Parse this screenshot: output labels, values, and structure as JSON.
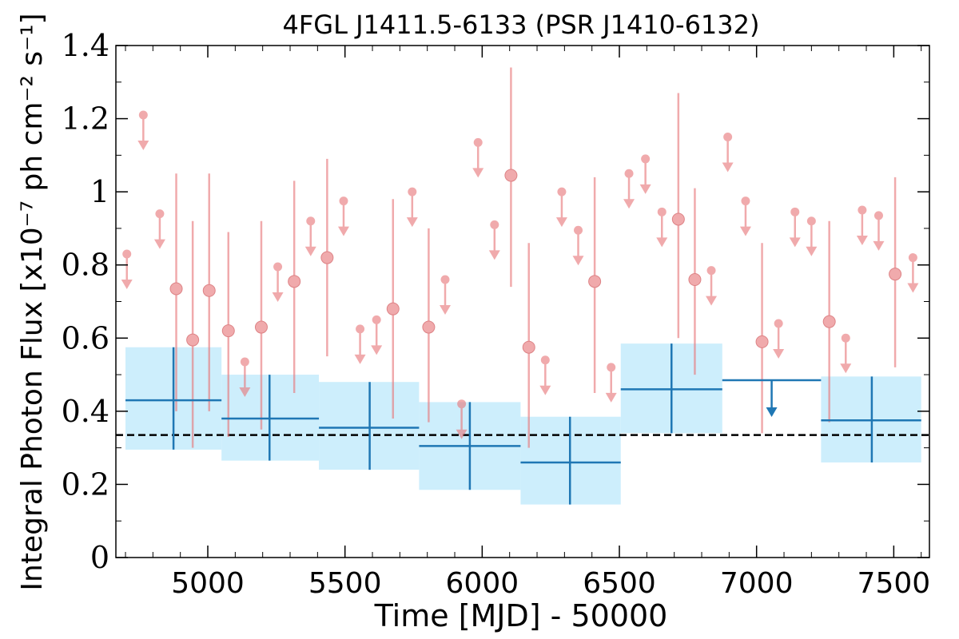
{
  "chart_data": {
    "type": "scatter",
    "title": "4FGL J1411.5-6133 (PSR J1410-6132)",
    "xlabel": "Time [MJD] - 50000",
    "ylabel": "Integral Photon Flux [x10⁻⁷ ph cm⁻² s⁻¹]",
    "xlim": [
      4665,
      7630
    ],
    "ylim": [
      0,
      1.4
    ],
    "xticks": [
      5000,
      5500,
      6000,
      6500,
      7000,
      7500
    ],
    "xtick_labels": [
      "5000",
      "5500",
      "6000",
      "6500",
      "7000",
      "7500"
    ],
    "yticks": [
      0,
      0.2,
      0.4,
      0.6,
      0.8,
      1,
      1.2,
      1.4
    ],
    "ytick_labels": [
      "0",
      "0.2",
      "0.4",
      "0.6",
      "0.8",
      "1",
      "1.2",
      "1.4"
    ],
    "grid": false,
    "reference_line": {
      "y": 0.335,
      "style": "dashed",
      "color": "#000000"
    },
    "colors": {
      "short_bins": "#e8777a",
      "long_bins_line": "#1f77b4",
      "long_bins_band": "#cdeefc"
    },
    "series": [
      {
        "bin": "short",
        "points": [
          {
            "x": 4705,
            "y": 0.83,
            "ul": true
          },
          {
            "x": 4765,
            "y": 1.21,
            "ul": true
          },
          {
            "x": 4825,
            "y": 0.94,
            "ul": true
          },
          {
            "x": 4885,
            "y": 0.735,
            "lo": 0.4,
            "hi": 1.05
          },
          {
            "x": 4945,
            "y": 0.595,
            "lo": 0.3,
            "hi": 0.92
          },
          {
            "x": 5005,
            "y": 0.73,
            "lo": 0.4,
            "hi": 1.05
          },
          {
            "x": 5075,
            "y": 0.62,
            "lo": 0.33,
            "hi": 0.89
          },
          {
            "x": 5135,
            "y": 0.535,
            "ul": true
          },
          {
            "x": 5195,
            "y": 0.63,
            "lo": 0.35,
            "hi": 0.92
          },
          {
            "x": 5255,
            "y": 0.795,
            "ul": true
          },
          {
            "x": 5315,
            "y": 0.755,
            "lo": 0.45,
            "hi": 1.03
          },
          {
            "x": 5375,
            "y": 0.92,
            "ul": true
          },
          {
            "x": 5435,
            "y": 0.82,
            "lo": 0.55,
            "hi": 1.09
          },
          {
            "x": 5495,
            "y": 0.975,
            "ul": true
          },
          {
            "x": 5555,
            "y": 0.625,
            "ul": true
          },
          {
            "x": 5615,
            "y": 0.65,
            "ul": true
          },
          {
            "x": 5675,
            "y": 0.68,
            "lo": 0.38,
            "hi": 0.98
          },
          {
            "x": 5745,
            "y": 1.0,
            "ul": true
          },
          {
            "x": 5805,
            "y": 0.63,
            "lo": 0.37,
            "hi": 0.9
          },
          {
            "x": 5865,
            "y": 0.76,
            "ul": true
          },
          {
            "x": 5925,
            "y": 0.42,
            "ul": true
          },
          {
            "x": 5985,
            "y": 1.135,
            "ul": true
          },
          {
            "x": 6045,
            "y": 0.91,
            "ul": true
          },
          {
            "x": 6105,
            "y": 1.045,
            "lo": 0.74,
            "hi": 1.34
          },
          {
            "x": 6170,
            "y": 0.575,
            "lo": 0.3,
            "hi": 0.86
          },
          {
            "x": 6230,
            "y": 0.54,
            "ul": true
          },
          {
            "x": 6290,
            "y": 1.0,
            "ul": true
          },
          {
            "x": 6350,
            "y": 0.895,
            "ul": true
          },
          {
            "x": 6410,
            "y": 0.755,
            "lo": 0.45,
            "hi": 1.04
          },
          {
            "x": 6470,
            "y": 0.52,
            "ul": true
          },
          {
            "x": 6535,
            "y": 1.05,
            "ul": true
          },
          {
            "x": 6595,
            "y": 1.09,
            "ul": true
          },
          {
            "x": 6655,
            "y": 0.945,
            "ul": true
          },
          {
            "x": 6715,
            "y": 0.925,
            "lo": 0.6,
            "hi": 1.27
          },
          {
            "x": 6775,
            "y": 0.76,
            "lo": 0.5,
            "hi": 1.01
          },
          {
            "x": 6835,
            "y": 0.785,
            "ul": true
          },
          {
            "x": 6895,
            "y": 1.15,
            "ul": true
          },
          {
            "x": 6960,
            "y": 0.975,
            "ul": true
          },
          {
            "x": 7020,
            "y": 0.59,
            "lo": 0.34,
            "hi": 0.86
          },
          {
            "x": 7080,
            "y": 0.64,
            "ul": true
          },
          {
            "x": 7140,
            "y": 0.945,
            "ul": true
          },
          {
            "x": 7200,
            "y": 0.92,
            "ul": true
          },
          {
            "x": 7265,
            "y": 0.645,
            "lo": 0.37,
            "hi": 0.92
          },
          {
            "x": 7325,
            "y": 0.6,
            "ul": true
          },
          {
            "x": 7385,
            "y": 0.95,
            "ul": true
          },
          {
            "x": 7445,
            "y": 0.935,
            "ul": true
          },
          {
            "x": 7505,
            "y": 0.775,
            "lo": 0.52,
            "hi": 1.04
          },
          {
            "x": 7570,
            "y": 0.82,
            "ul": true
          }
        ]
      },
      {
        "bin": "long",
        "points": [
          {
            "x0": 4700,
            "x1": 5050,
            "x": 4875,
            "y": 0.43,
            "lo": 0.295,
            "hi": 0.575,
            "band_lo": 0.295,
            "band_hi": 0.575
          },
          {
            "x0": 5050,
            "x1": 5405,
            "x": 5225,
            "y": 0.38,
            "lo": 0.265,
            "hi": 0.5,
            "band_lo": 0.265,
            "band_hi": 0.5
          },
          {
            "x0": 5405,
            "x1": 5770,
            "x": 5590,
            "y": 0.355,
            "lo": 0.24,
            "hi": 0.48,
            "band_lo": 0.24,
            "band_hi": 0.48
          },
          {
            "x0": 5770,
            "x1": 6140,
            "x": 5955,
            "y": 0.305,
            "lo": 0.185,
            "hi": 0.425,
            "band_lo": 0.185,
            "band_hi": 0.425
          },
          {
            "x0": 6140,
            "x1": 6505,
            "x": 6320,
            "y": 0.26,
            "lo": 0.145,
            "hi": 0.385,
            "band_lo": 0.145,
            "band_hi": 0.385
          },
          {
            "x0": 6505,
            "x1": 6875,
            "x": 6690,
            "y": 0.46,
            "lo": 0.34,
            "hi": 0.585,
            "band_lo": 0.34,
            "band_hi": 0.585
          },
          {
            "x0": 6875,
            "x1": 7235,
            "x": 7055,
            "y": 0.485,
            "ul": true
          },
          {
            "x0": 7235,
            "x1": 7600,
            "x": 7420,
            "y": 0.375,
            "lo": 0.26,
            "hi": 0.495,
            "band_lo": 0.26,
            "band_hi": 0.495
          }
        ]
      }
    ]
  }
}
